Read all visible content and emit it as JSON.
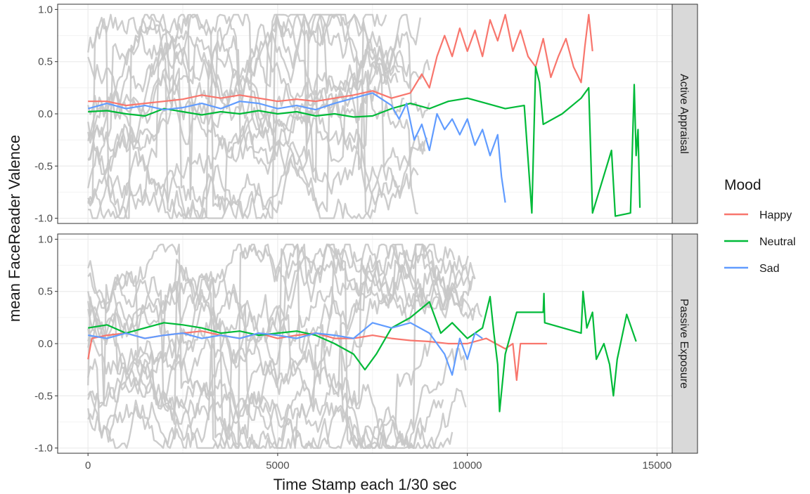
{
  "chart_data": {
    "type": "line",
    "xlabel": "Time Stamp each 1/30 sec",
    "ylabel": "mean FaceReader Valence",
    "xlim": [
      -800,
      15400
    ],
    "ylim": [
      -1.05,
      1.05
    ],
    "x_ticks": [
      0,
      5000,
      10000,
      15000
    ],
    "x_tick_labels": [
      "0",
      "5000",
      "10000",
      "15000"
    ],
    "y_ticks": [
      -1.0,
      -0.5,
      0.0,
      0.5,
      1.0
    ],
    "y_tick_labels": [
      "-1.0",
      "-0.5",
      "0.0",
      "0.5",
      "1.0"
    ],
    "grid": true,
    "legend": {
      "title": "Mood",
      "position": "right",
      "entries": [
        {
          "label": "Happy",
          "color": "#F8766D"
        },
        {
          "label": "Neutral",
          "color": "#00BA38"
        },
        {
          "label": "Sad",
          "color": "#619CFF"
        }
      ]
    },
    "background_points": {
      "color": "#c8c8c8",
      "description_shown": false
    },
    "panels": [
      {
        "label": "Active Appraisal",
        "background_band": {
          "x_min": 0,
          "x_max": 9100,
          "y_min": -1.0,
          "y_max": 0.95
        },
        "series": [
          {
            "name": "Happy",
            "color": "#F8766D",
            "points": [
              [
                0,
                0.12
              ],
              [
                500,
                0.12
              ],
              [
                1000,
                0.08
              ],
              [
                1500,
                0.1
              ],
              [
                2000,
                0.12
              ],
              [
                2500,
                0.14
              ],
              [
                3000,
                0.18
              ],
              [
                3500,
                0.15
              ],
              [
                4000,
                0.18
              ],
              [
                4500,
                0.15
              ],
              [
                5000,
                0.12
              ],
              [
                5500,
                0.14
              ],
              [
                6000,
                0.12
              ],
              [
                6500,
                0.15
              ],
              [
                7000,
                0.18
              ],
              [
                7500,
                0.22
              ],
              [
                8000,
                0.15
              ],
              [
                8500,
                0.2
              ],
              [
                8800,
                0.38
              ],
              [
                9000,
                0.25
              ],
              [
                9200,
                0.55
              ],
              [
                9400,
                0.75
              ],
              [
                9600,
                0.55
              ],
              [
                9800,
                0.82
              ],
              [
                10000,
                0.6
              ],
              [
                10200,
                0.8
              ],
              [
                10400,
                0.55
              ],
              [
                10600,
                0.9
              ],
              [
                10800,
                0.7
              ],
              [
                11000,
                0.95
              ],
              [
                11200,
                0.6
              ],
              [
                11400,
                0.8
              ],
              [
                11600,
                0.55
              ],
              [
                11800,
                0.45
              ],
              [
                12000,
                0.72
              ],
              [
                12200,
                0.35
              ],
              [
                12400,
                0.55
              ],
              [
                12600,
                0.72
              ],
              [
                12800,
                0.45
              ],
              [
                13000,
                0.3
              ],
              [
                13100,
                0.65
              ],
              [
                13200,
                0.95
              ],
              [
                13300,
                0.6
              ]
            ]
          },
          {
            "name": "Neutral",
            "color": "#00BA38",
            "points": [
              [
                0,
                0.02
              ],
              [
                500,
                0.03
              ],
              [
                1000,
                0.0
              ],
              [
                1500,
                -0.02
              ],
              [
                2000,
                0.05
              ],
              [
                2500,
                0.02
              ],
              [
                3000,
                -0.01
              ],
              [
                3500,
                0.02
              ],
              [
                4000,
                0.0
              ],
              [
                4500,
                0.03
              ],
              [
                5000,
                0.0
              ],
              [
                5500,
                0.02
              ],
              [
                6000,
                -0.02
              ],
              [
                6500,
                0.0
              ],
              [
                7000,
                -0.03
              ],
              [
                7500,
                -0.02
              ],
              [
                8000,
                0.05
              ],
              [
                8500,
                0.1
              ],
              [
                9000,
                0.05
              ],
              [
                9500,
                0.12
              ],
              [
                10000,
                0.15
              ],
              [
                10500,
                0.1
              ],
              [
                11000,
                0.05
              ],
              [
                11500,
                0.08
              ],
              [
                11700,
                -0.95
              ],
              [
                11800,
                0.45
              ],
              [
                11900,
                0.3
              ],
              [
                12000,
                -0.1
              ],
              [
                12500,
                0.0
              ],
              [
                13000,
                0.15
              ],
              [
                13200,
                0.25
              ],
              [
                13300,
                -0.95
              ],
              [
                13800,
                -0.35
              ],
              [
                13900,
                -0.98
              ],
              [
                14300,
                -0.95
              ],
              [
                14400,
                0.28
              ],
              [
                14450,
                -0.4
              ],
              [
                14500,
                -0.15
              ],
              [
                14550,
                -0.9
              ]
            ]
          },
          {
            "name": "Sad",
            "color": "#619CFF",
            "points": [
              [
                0,
                0.05
              ],
              [
                500,
                0.1
              ],
              [
                1000,
                0.05
              ],
              [
                1500,
                0.08
              ],
              [
                2000,
                0.04
              ],
              [
                2500,
                0.06
              ],
              [
                3000,
                0.1
              ],
              [
                3500,
                0.05
              ],
              [
                4000,
                0.12
              ],
              [
                4500,
                0.1
              ],
              [
                5000,
                0.05
              ],
              [
                5500,
                0.08
              ],
              [
                6000,
                0.04
              ],
              [
                6500,
                0.1
              ],
              [
                7000,
                0.15
              ],
              [
                7500,
                0.2
              ],
              [
                8000,
                0.08
              ],
              [
                8200,
                -0.05
              ],
              [
                8400,
                0.1
              ],
              [
                8600,
                -0.25
              ],
              [
                8800,
                -0.1
              ],
              [
                9000,
                -0.35
              ],
              [
                9200,
                0.0
              ],
              [
                9400,
                -0.15
              ],
              [
                9600,
                -0.05
              ],
              [
                9800,
                -0.2
              ],
              [
                10000,
                -0.05
              ],
              [
                10200,
                -0.3
              ],
              [
                10400,
                -0.15
              ],
              [
                10600,
                -0.4
              ],
              [
                10800,
                -0.2
              ],
              [
                10900,
                -0.6
              ],
              [
                11000,
                -0.85
              ]
            ]
          }
        ]
      },
      {
        "label": "Passive Exposure",
        "background_band": {
          "x_min": 0,
          "x_max": 10600,
          "y_min": -1.0,
          "y_max": 0.95
        },
        "series": [
          {
            "name": "Happy",
            "color": "#F8766D",
            "points": [
              [
                0,
                -0.15
              ],
              [
                100,
                0.05
              ],
              [
                500,
                0.08
              ],
              [
                1000,
                0.1
              ],
              [
                1500,
                0.05
              ],
              [
                2000,
                0.08
              ],
              [
                2500,
                0.1
              ],
              [
                3000,
                0.12
              ],
              [
                3500,
                0.08
              ],
              [
                4000,
                0.05
              ],
              [
                4500,
                0.1
              ],
              [
                5000,
                0.05
              ],
              [
                5500,
                0.08
              ],
              [
                6000,
                0.1
              ],
              [
                6500,
                0.05
              ],
              [
                7000,
                0.05
              ],
              [
                7500,
                0.08
              ],
              [
                8000,
                0.05
              ],
              [
                8500,
                0.03
              ],
              [
                9000,
                0.02
              ],
              [
                9500,
                0.0
              ],
              [
                10000,
                0.0
              ],
              [
                10500,
                0.05
              ],
              [
                11000,
                -0.05
              ],
              [
                11200,
                0.0
              ],
              [
                11300,
                -0.35
              ],
              [
                11400,
                0.0
              ],
              [
                11800,
                0.0
              ],
              [
                12100,
                0.0
              ]
            ]
          },
          {
            "name": "Neutral",
            "color": "#00BA38",
            "points": [
              [
                0,
                0.15
              ],
              [
                500,
                0.18
              ],
              [
                1000,
                0.1
              ],
              [
                1500,
                0.15
              ],
              [
                2000,
                0.2
              ],
              [
                2500,
                0.18
              ],
              [
                3000,
                0.15
              ],
              [
                3500,
                0.1
              ],
              [
                4000,
                0.12
              ],
              [
                4500,
                0.08
              ],
              [
                5000,
                0.1
              ],
              [
                5500,
                0.12
              ],
              [
                6000,
                0.08
              ],
              [
                6500,
                0.0
              ],
              [
                7000,
                -0.1
              ],
              [
                7300,
                -0.25
              ],
              [
                7600,
                -0.1
              ],
              [
                8000,
                0.15
              ],
              [
                8500,
                0.25
              ],
              [
                9000,
                0.4
              ],
              [
                9300,
                0.1
              ],
              [
                9600,
                0.2
              ],
              [
                10000,
                0.05
              ],
              [
                10400,
                0.15
              ],
              [
                10600,
                0.45
              ],
              [
                10700,
                0.1
              ],
              [
                10800,
                -0.2
              ],
              [
                10850,
                -0.65
              ],
              [
                11000,
                -0.1
              ],
              [
                11300,
                0.3
              ],
              [
                12000,
                0.3
              ],
              [
                12020,
                0.48
              ],
              [
                12040,
                0.2
              ],
              [
                13000,
                0.1
              ],
              [
                13050,
                0.5
              ],
              [
                13150,
                0.15
              ],
              [
                13300,
                0.3
              ],
              [
                13400,
                -0.15
              ],
              [
                13600,
                0.0
              ],
              [
                13750,
                -0.2
              ],
              [
                13850,
                -0.5
              ],
              [
                13950,
                -0.15
              ],
              [
                14200,
                0.28
              ],
              [
                14450,
                0.02
              ]
            ]
          },
          {
            "name": "Sad",
            "color": "#619CFF",
            "points": [
              [
                0,
                0.08
              ],
              [
                500,
                0.05
              ],
              [
                1000,
                0.1
              ],
              [
                1500,
                0.05
              ],
              [
                2000,
                0.08
              ],
              [
                2500,
                0.1
              ],
              [
                3000,
                0.05
              ],
              [
                3500,
                0.08
              ],
              [
                4000,
                0.05
              ],
              [
                4500,
                0.1
              ],
              [
                5000,
                0.08
              ],
              [
                5500,
                0.05
              ],
              [
                6000,
                0.1
              ],
              [
                6500,
                0.08
              ],
              [
                7000,
                0.05
              ],
              [
                7500,
                0.2
              ],
              [
                8000,
                0.15
              ],
              [
                8500,
                0.2
              ],
              [
                9000,
                0.1
              ],
              [
                9400,
                -0.1
              ],
              [
                9600,
                -0.3
              ],
              [
                9800,
                0.05
              ],
              [
                10000,
                -0.15
              ],
              [
                10200,
                0.1
              ],
              [
                10400,
                0.05
              ]
            ]
          }
        ]
      }
    ]
  }
}
